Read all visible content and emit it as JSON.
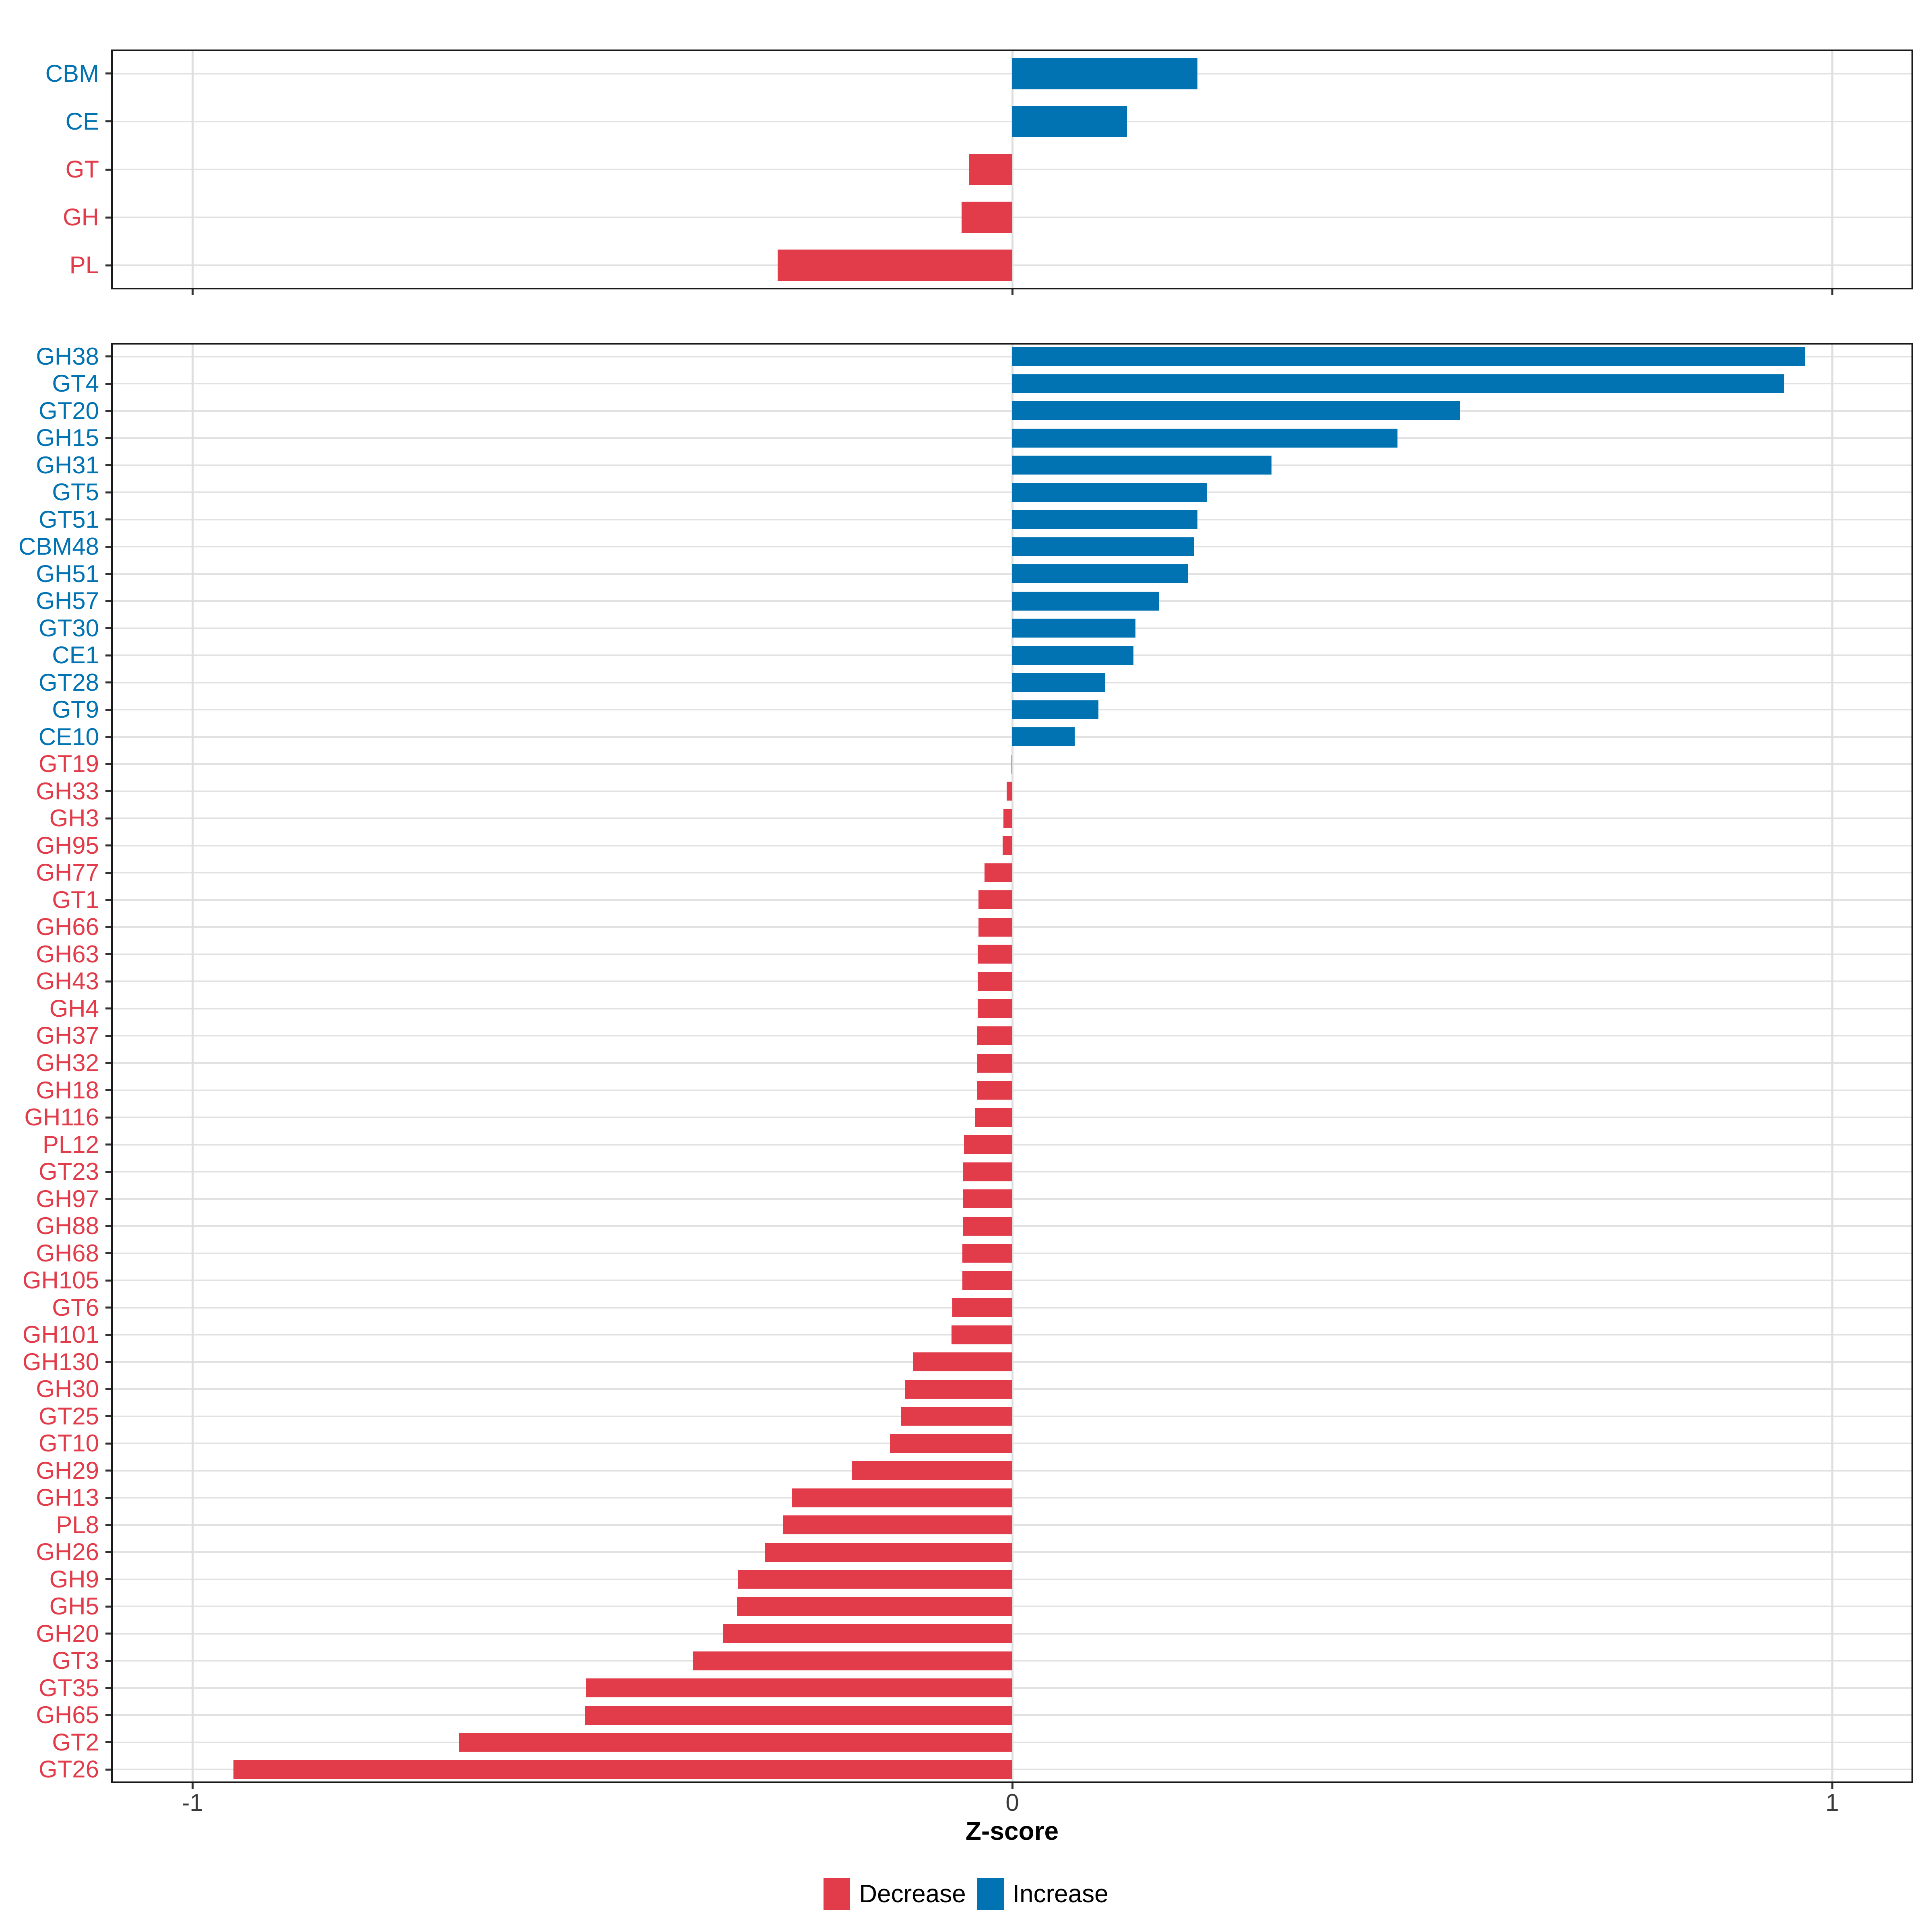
{
  "figure": {
    "xlabel": "Z-score",
    "x_ticks": [
      "-1",
      "0",
      "1"
    ],
    "x_tick_values": [
      -1,
      0,
      1
    ],
    "legend": {
      "items": [
        {
          "label": "Decrease",
          "direction": "decrease",
          "color": "#e23b49"
        },
        {
          "label": "Increase",
          "direction": "increase",
          "color": "#0173b2"
        }
      ]
    },
    "colors": {
      "increase": "#0173b2",
      "decrease": "#e23b49",
      "grid": "#e2e2e2",
      "panel_border": "#1a1a1a",
      "tick": "#333333",
      "tick_label": "#3a3a3a"
    }
  },
  "chart_data": [
    {
      "type": "bar",
      "orientation": "horizontal",
      "panel": "cazyme-classes",
      "title": "",
      "xlabel": "Z-score",
      "ylabel": "",
      "xlim": [
        -1.1,
        1.1
      ],
      "grid": true,
      "series": [
        {
          "label": "CBM",
          "value": 0.226,
          "direction": "increase"
        },
        {
          "label": "CE",
          "value": 0.14,
          "direction": "increase"
        },
        {
          "label": "GT",
          "value": -0.053,
          "direction": "decrease"
        },
        {
          "label": "GH",
          "value": -0.062,
          "direction": "decrease"
        },
        {
          "label": "PL",
          "value": -0.286,
          "direction": "decrease"
        }
      ]
    },
    {
      "type": "bar",
      "orientation": "horizontal",
      "panel": "cazyme-families",
      "title": "",
      "xlabel": "Z-score",
      "ylabel": "",
      "xlim": [
        -1.1,
        1.1
      ],
      "grid": true,
      "series": [
        {
          "label": "GH38",
          "value": 0.967,
          "direction": "increase"
        },
        {
          "label": "GT4",
          "value": 0.941,
          "direction": "increase"
        },
        {
          "label": "GT20",
          "value": 0.546,
          "direction": "increase"
        },
        {
          "label": "GH15",
          "value": 0.47,
          "direction": "increase"
        },
        {
          "label": "GH31",
          "value": 0.316,
          "direction": "increase"
        },
        {
          "label": "GT5",
          "value": 0.237,
          "direction": "increase"
        },
        {
          "label": "GT51",
          "value": 0.226,
          "direction": "increase"
        },
        {
          "label": "CBM48",
          "value": 0.222,
          "direction": "increase"
        },
        {
          "label": "GH51",
          "value": 0.214,
          "direction": "increase"
        },
        {
          "label": "GH57",
          "value": 0.179,
          "direction": "increase"
        },
        {
          "label": "GT30",
          "value": 0.15,
          "direction": "increase"
        },
        {
          "label": "CE1",
          "value": 0.148,
          "direction": "increase"
        },
        {
          "label": "GT28",
          "value": 0.113,
          "direction": "increase"
        },
        {
          "label": "GT9",
          "value": 0.105,
          "direction": "increase"
        },
        {
          "label": "CE10",
          "value": 0.076,
          "direction": "increase"
        },
        {
          "label": "GT19",
          "value": -0.001,
          "direction": "decrease"
        },
        {
          "label": "GH33",
          "value": -0.007,
          "direction": "decrease"
        },
        {
          "label": "GH3",
          "value": -0.011,
          "direction": "decrease"
        },
        {
          "label": "GH95",
          "value": -0.012,
          "direction": "decrease"
        },
        {
          "label": "GH77",
          "value": -0.034,
          "direction": "decrease"
        },
        {
          "label": "GT1",
          "value": -0.041,
          "direction": "decrease"
        },
        {
          "label": "GH66",
          "value": -0.041,
          "direction": "decrease"
        },
        {
          "label": "GH63",
          "value": -0.042,
          "direction": "decrease"
        },
        {
          "label": "GH43",
          "value": -0.042,
          "direction": "decrease"
        },
        {
          "label": "GH4",
          "value": -0.042,
          "direction": "decrease"
        },
        {
          "label": "GH37",
          "value": -0.043,
          "direction": "decrease"
        },
        {
          "label": "GH32",
          "value": -0.043,
          "direction": "decrease"
        },
        {
          "label": "GH18",
          "value": -0.043,
          "direction": "decrease"
        },
        {
          "label": "GH116",
          "value": -0.045,
          "direction": "decrease"
        },
        {
          "label": "PL12",
          "value": -0.059,
          "direction": "decrease"
        },
        {
          "label": "GT23",
          "value": -0.06,
          "direction": "decrease"
        },
        {
          "label": "GH97",
          "value": -0.06,
          "direction": "decrease"
        },
        {
          "label": "GH88",
          "value": -0.06,
          "direction": "decrease"
        },
        {
          "label": "GH68",
          "value": -0.061,
          "direction": "decrease"
        },
        {
          "label": "GH105",
          "value": -0.061,
          "direction": "decrease"
        },
        {
          "label": "GT6",
          "value": -0.073,
          "direction": "decrease"
        },
        {
          "label": "GH101",
          "value": -0.074,
          "direction": "decrease"
        },
        {
          "label": "GH130",
          "value": -0.121,
          "direction": "decrease"
        },
        {
          "label": "GH30",
          "value": -0.131,
          "direction": "decrease"
        },
        {
          "label": "GT25",
          "value": -0.136,
          "direction": "decrease"
        },
        {
          "label": "GT10",
          "value": -0.149,
          "direction": "decrease"
        },
        {
          "label": "GH29",
          "value": -0.196,
          "direction": "decrease"
        },
        {
          "label": "GH13",
          "value": -0.269,
          "direction": "decrease"
        },
        {
          "label": "PL8",
          "value": -0.28,
          "direction": "decrease"
        },
        {
          "label": "GH26",
          "value": -0.302,
          "direction": "decrease"
        },
        {
          "label": "GH9",
          "value": -0.335,
          "direction": "decrease"
        },
        {
          "label": "GH5",
          "value": -0.336,
          "direction": "decrease"
        },
        {
          "label": "GH20",
          "value": -0.353,
          "direction": "decrease"
        },
        {
          "label": "GT3",
          "value": -0.39,
          "direction": "decrease"
        },
        {
          "label": "GT35",
          "value": -0.52,
          "direction": "decrease"
        },
        {
          "label": "GH65",
          "value": -0.521,
          "direction": "decrease"
        },
        {
          "label": "GT2",
          "value": -0.675,
          "direction": "decrease"
        },
        {
          "label": "GT26",
          "value": -0.95,
          "direction": "decrease"
        }
      ]
    }
  ]
}
